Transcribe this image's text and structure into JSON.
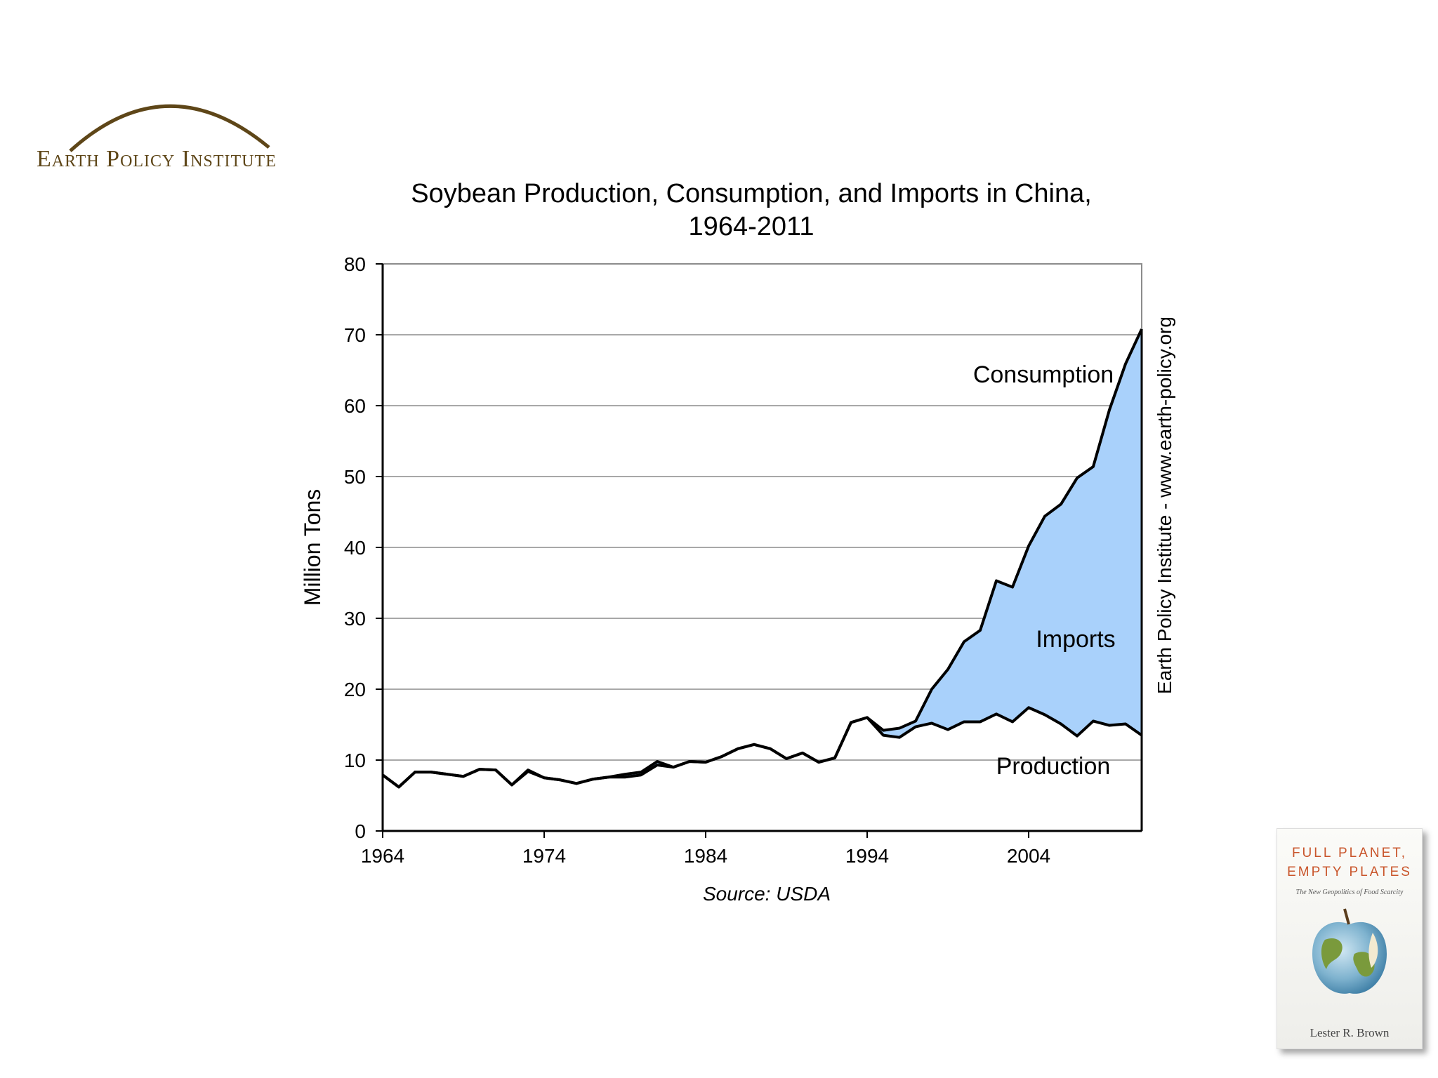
{
  "branding": {
    "org_name": "Earth Policy Institute"
  },
  "book": {
    "title_line1": "FULL PLANET,",
    "title_line2": "EMPTY PLATES",
    "subtitle": "The New Geopolitics of Food Scarcity",
    "author": "Lester R. Brown"
  },
  "colors": {
    "imports_fill": "#a9d1fb",
    "line": "#000000",
    "grid": "#8c8c8c",
    "logo_brown": "#5e4618"
  },
  "chart_data": {
    "type": "area",
    "title_line1": "Soybean Production, Consumption, and Imports in China,",
    "title_line2": "1964-2011",
    "ylabel": "Million Tons",
    "xlabel": "",
    "source": "Source: USDA",
    "side_label": "Earth Policy Institute - www.earth-policy.org",
    "xlim": [
      1964,
      2011
    ],
    "ylim": [
      0,
      80
    ],
    "x_ticks": [
      1964,
      1974,
      1984,
      1994,
      2004
    ],
    "y_ticks": [
      0,
      10,
      20,
      30,
      40,
      50,
      60,
      70,
      80
    ],
    "grid": true,
    "annotations": {
      "consumption": "Consumption",
      "imports": "Imports",
      "production": "Production"
    },
    "series": [
      {
        "name": "Consumption",
        "x": [
          1964,
          1965,
          1966,
          1967,
          1968,
          1969,
          1970,
          1971,
          1972,
          1973,
          1974,
          1975,
          1976,
          1977,
          1978,
          1979,
          1980,
          1981,
          1982,
          1983,
          1984,
          1985,
          1986,
          1987,
          1988,
          1989,
          1990,
          1991,
          1992,
          1993,
          1994,
          1995,
          1996,
          1997,
          1998,
          1999,
          2000,
          2001,
          2002,
          2003,
          2004,
          2005,
          2006,
          2007,
          2008,
          2009,
          2010,
          2011
        ],
        "values": [
          7.9,
          6.2,
          8.3,
          8.3,
          8.0,
          7.7,
          8.7,
          8.6,
          6.5,
          8.4,
          7.5,
          7.2,
          6.7,
          7.3,
          7.6,
          8.0,
          8.3,
          9.8,
          9.0,
          9.8,
          9.7,
          10.5,
          11.6,
          12.2,
          11.6,
          10.2,
          11.0,
          9.7,
          10.3,
          15.3,
          16.0,
          14.2,
          14.5,
          15.5,
          20.0,
          22.8,
          26.7,
          28.3,
          35.3,
          34.4,
          40.2,
          44.4,
          46.1,
          49.8,
          51.4,
          59.4,
          65.9,
          70.8
        ]
      },
      {
        "name": "Production",
        "x": [
          1964,
          1965,
          1966,
          1967,
          1968,
          1969,
          1970,
          1971,
          1972,
          1973,
          1974,
          1975,
          1976,
          1977,
          1978,
          1979,
          1980,
          1981,
          1982,
          1983,
          1984,
          1985,
          1986,
          1987,
          1988,
          1989,
          1990,
          1991,
          1992,
          1993,
          1994,
          1995,
          1996,
          1997,
          1998,
          1999,
          2000,
          2001,
          2002,
          2003,
          2004,
          2005,
          2006,
          2007,
          2008,
          2009,
          2010,
          2011
        ],
        "values": [
          7.9,
          6.2,
          8.3,
          8.3,
          8.0,
          7.7,
          8.7,
          8.6,
          6.5,
          8.6,
          7.5,
          7.2,
          6.7,
          7.3,
          7.6,
          7.6,
          7.9,
          9.3,
          9.0,
          9.8,
          9.7,
          10.5,
          11.6,
          12.2,
          11.6,
          10.2,
          11.0,
          9.7,
          10.3,
          15.3,
          16.0,
          13.5,
          13.2,
          14.7,
          15.2,
          14.3,
          15.4,
          15.4,
          16.5,
          15.4,
          17.4,
          16.4,
          15.1,
          13.4,
          15.5,
          14.9,
          15.1,
          13.5
        ]
      }
    ]
  }
}
